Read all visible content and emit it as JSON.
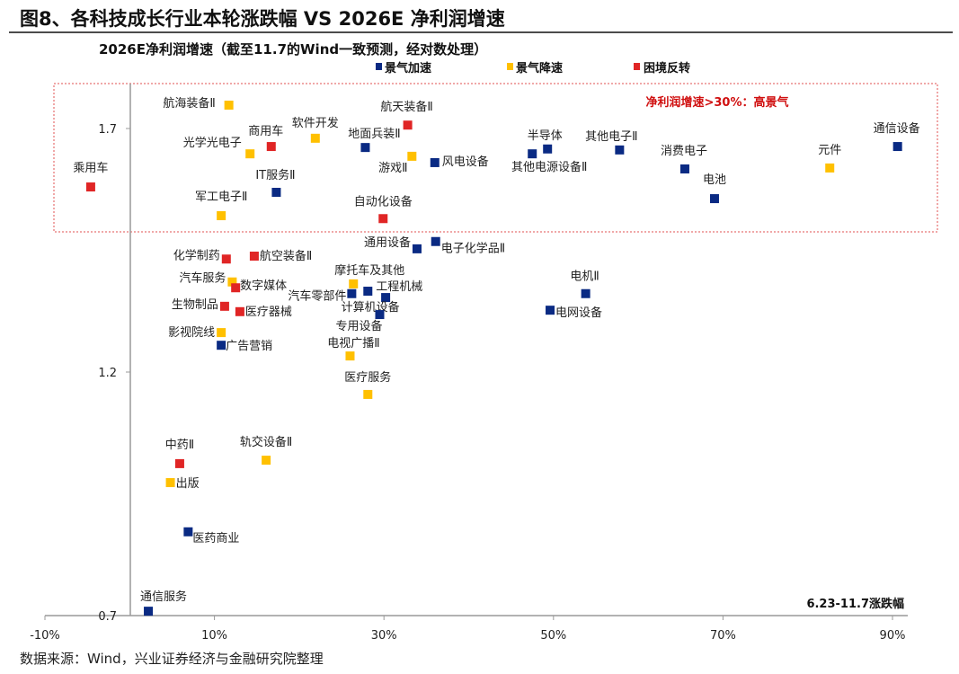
{
  "title": "图8、各科技成长行业本轮涨跌幅  VS 2026E 净利润增速",
  "source": "数据来源：Wind，兴业证券经济与金融研究院整理",
  "chart_data": {
    "type": "scatter",
    "title": "2026E净利润增速（截至11.7的Wind一致预测，经对数处理）",
    "ylabel": "2026E净利润增速（截至11.7的Wind一致预测，经对数处理）",
    "xlabel": "6.23-11.7涨跌幅",
    "xlim": [
      -10,
      92
    ],
    "ylim": [
      0.7,
      1.78
    ],
    "x_ticks": [
      "-10%",
      "10%",
      "30%",
      "50%",
      "70%",
      "90%"
    ],
    "x_tick_values": [
      -10,
      10,
      30,
      50,
      70,
      90
    ],
    "y_ticks": [
      "1.7",
      "1.2",
      "0.7"
    ],
    "y_tick_values": [
      1.7,
      1.2,
      0.7
    ],
    "grid": false,
    "legend_placement": "top",
    "highlight_region": {
      "label": "净利润增速>30%：高景气",
      "color": "#e02525"
    },
    "series": [
      {
        "name": "景气加速",
        "color": "#0a2a83"
      },
      {
        "name": "景气降速",
        "color": "#ffc000"
      },
      {
        "name": "困境反转",
        "color": "#e02525"
      }
    ],
    "points": [
      {
        "label": "乘用车",
        "series": 2,
        "x": -4.6,
        "y": 1.58
      },
      {
        "label": "航海装备Ⅱ",
        "series": 1,
        "x": 11.7,
        "y": 1.748
      },
      {
        "label": "光学光电子",
        "series": 1,
        "x": 14.2,
        "y": 1.648
      },
      {
        "label": "商用车",
        "series": 2,
        "x": 16.7,
        "y": 1.663
      },
      {
        "label": "软件开发",
        "series": 1,
        "x": 21.9,
        "y": 1.68
      },
      {
        "label": "地面兵装Ⅱ",
        "series": 0,
        "x": 27.8,
        "y": 1.661
      },
      {
        "label": "航天装备Ⅱ",
        "series": 2,
        "x": 32.8,
        "y": 1.707
      },
      {
        "label": "游戏Ⅱ",
        "series": 1,
        "x": 33.3,
        "y": 1.643
      },
      {
        "label": "风电设备",
        "series": 0,
        "x": 36.0,
        "y": 1.63
      },
      {
        "label": "IT服务Ⅱ",
        "series": 0,
        "x": 17.3,
        "y": 1.569
      },
      {
        "label": "军工电子Ⅱ",
        "series": 1,
        "x": 10.8,
        "y": 1.521
      },
      {
        "label": "自动化设备",
        "series": 2,
        "x": 29.9,
        "y": 1.515
      },
      {
        "label": "半导体",
        "series": 0,
        "x": 49.3,
        "y": 1.658
      },
      {
        "label": "其他电源设备Ⅱ",
        "series": 0,
        "x": 47.5,
        "y": 1.648
      },
      {
        "label": "其他电子Ⅱ",
        "series": 0,
        "x": 57.8,
        "y": 1.656
      },
      {
        "label": "消费电子",
        "series": 0,
        "x": 65.5,
        "y": 1.617
      },
      {
        "label": "电池",
        "series": 0,
        "x": 69.0,
        "y": 1.556
      },
      {
        "label": "元件",
        "series": 1,
        "x": 82.6,
        "y": 1.619
      },
      {
        "label": "通信设备",
        "series": 0,
        "x": 90.6,
        "y": 1.663
      },
      {
        "label": "通用设备",
        "series": 0,
        "x": 33.9,
        "y": 1.453
      },
      {
        "label": "电子化学品Ⅱ",
        "series": 0,
        "x": 36.1,
        "y": 1.468
      },
      {
        "label": "化学制药",
        "series": 2,
        "x": 11.4,
        "y": 1.432
      },
      {
        "label": "航空装备Ⅱ",
        "series": 2,
        "x": 14.7,
        "y": 1.438
      },
      {
        "label": "汽车服务",
        "series": 1,
        "x": 12.1,
        "y": 1.385
      },
      {
        "label": "数字媒体",
        "series": 2,
        "x": 12.5,
        "y": 1.373
      },
      {
        "label": "生物制品",
        "series": 2,
        "x": 11.2,
        "y": 1.335
      },
      {
        "label": "医疗器械",
        "series": 2,
        "x": 13.0,
        "y": 1.324
      },
      {
        "label": "影视院线",
        "series": 1,
        "x": 10.8,
        "y": 1.281
      },
      {
        "label": "广告营销",
        "series": 0,
        "x": 10.8,
        "y": 1.255
      },
      {
        "label": "摩托车及其他",
        "series": 1,
        "x": 26.4,
        "y": 1.381
      },
      {
        "label": "汽车零部件",
        "series": 0,
        "x": 26.2,
        "y": 1.361
      },
      {
        "label": "工程机械",
        "series": 0,
        "x": 28.1,
        "y": 1.366
      },
      {
        "label": "计算机设备",
        "series": 0,
        "x": 30.2,
        "y": 1.353
      },
      {
        "label": "专用设备",
        "series": 0,
        "x": 29.5,
        "y": 1.318
      },
      {
        "label": "电视广播Ⅱ",
        "series": 1,
        "x": 26.0,
        "y": 1.233
      },
      {
        "label": "医疗服务",
        "series": 1,
        "x": 28.1,
        "y": 1.154
      },
      {
        "label": "电机Ⅱ",
        "series": 0,
        "x": 53.8,
        "y": 1.361
      },
      {
        "label": "电网设备",
        "series": 0,
        "x": 49.6,
        "y": 1.327
      },
      {
        "label": "中药Ⅱ",
        "series": 2,
        "x": 5.9,
        "y": 1.012
      },
      {
        "label": "轨交设备Ⅱ",
        "series": 1,
        "x": 16.1,
        "y": 1.019
      },
      {
        "label": "出版",
        "series": 1,
        "x": 4.8,
        "y": 0.973
      },
      {
        "label": "医药商业",
        "series": 0,
        "x": 6.9,
        "y": 0.872
      },
      {
        "label": "通信服务",
        "series": 0,
        "x": 2.2,
        "y": 0.709
      }
    ]
  }
}
